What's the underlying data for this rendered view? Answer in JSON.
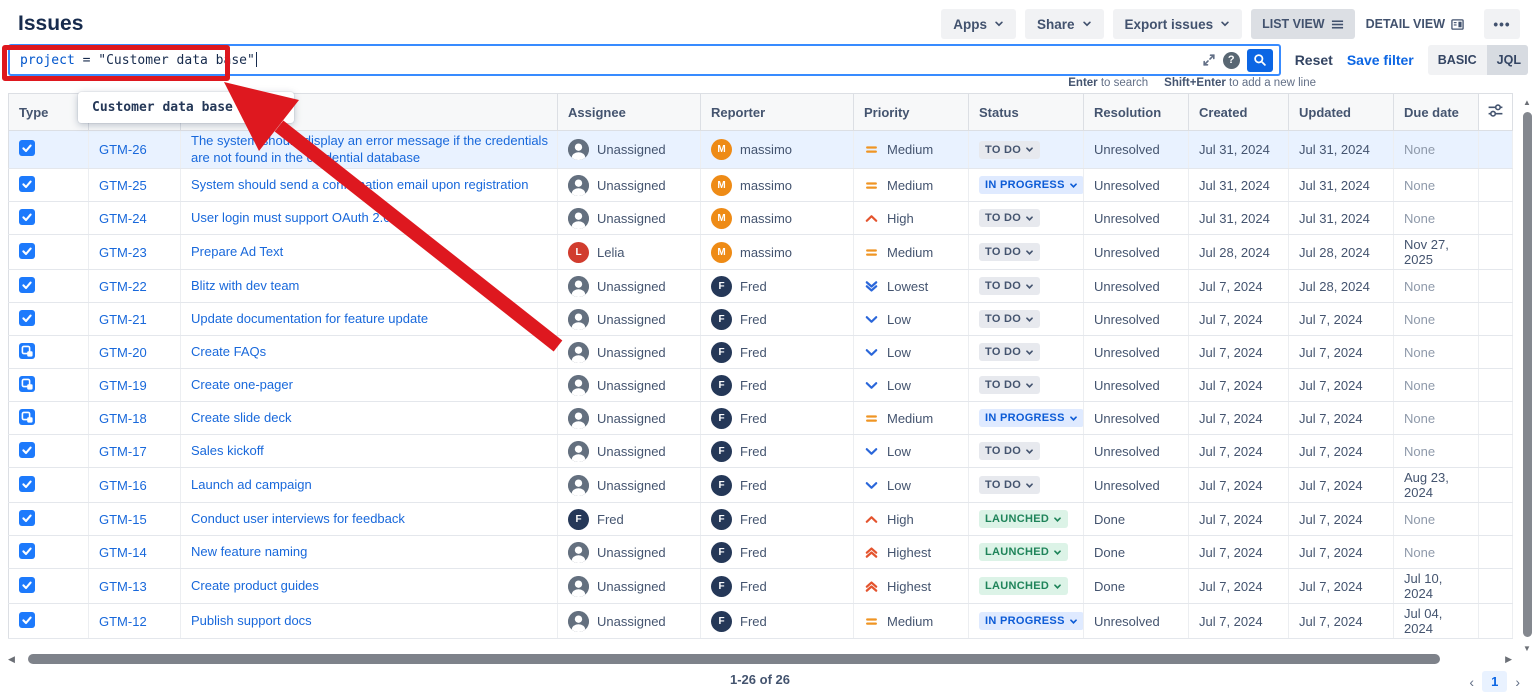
{
  "page": {
    "title": "Issues"
  },
  "toolbar": {
    "apps": "Apps",
    "share": "Share",
    "export_issues": "Export issues",
    "list_view": "LIST VIEW",
    "detail_view": "DETAIL VIEW",
    "more": "•••"
  },
  "search": {
    "query_keyword": "project",
    "query_rest": " = \"Customer data base\"",
    "reset": "Reset",
    "save_filter": "Save filter",
    "basic": "BASIC",
    "jql": "JQL",
    "hint_enter_bold": "Enter",
    "hint_enter_rest": " to search",
    "hint_shift_bold": "Shift+Enter",
    "hint_shift_rest": " to add a new line",
    "suggestion": "Customer data base (CDB)"
  },
  "icons": {
    "search": "magnifier",
    "help": "question-mark-circle",
    "expand": "diagonal-resize-arrows",
    "column_settings": "sliders",
    "list_view": "list-lines",
    "detail_view": "split-panel",
    "chevron": "chevron-down"
  },
  "colors": {
    "accent_blue": "#0c66e4",
    "search_border": "#388bff",
    "annotation_red": "#de181f",
    "selected_row": "#e9f2ff",
    "avatar_orange": "#ee8b16",
    "avatar_red": "#d13c2e",
    "avatar_navy": "#253858"
  },
  "table": {
    "columns": [
      "Type",
      "",
      "",
      "Assignee",
      "Reporter",
      "Priority",
      "Status",
      "Resolution",
      "Created",
      "Updated",
      "Due date"
    ],
    "rows": [
      {
        "selected": true,
        "type": "task",
        "key": "GTM-26",
        "summary": "The system should display an error message if the credentials are not found in the credential database",
        "assignee": {
          "name": "Unassigned",
          "avatar": "person"
        },
        "reporter": {
          "name": "massimo",
          "initial": "M",
          "color": "#ee8b16"
        },
        "priority": "Medium",
        "status": "TO DO",
        "resolution": "Unresolved",
        "created": "Jul 31, 2024",
        "updated": "Jul 31, 2024",
        "due": "None"
      },
      {
        "type": "task",
        "key": "GTM-25",
        "summary": "System should send a confirmation email upon registration",
        "assignee": {
          "name": "Unassigned",
          "avatar": "person"
        },
        "reporter": {
          "name": "massimo",
          "initial": "M",
          "color": "#ee8b16"
        },
        "priority": "Medium",
        "status": "IN PROGRESS",
        "resolution": "Unresolved",
        "created": "Jul 31, 2024",
        "updated": "Jul 31, 2024",
        "due": "None"
      },
      {
        "type": "task",
        "key": "GTM-24",
        "summary": "User login must support OAuth 2.0",
        "assignee": {
          "name": "Unassigned",
          "avatar": "person"
        },
        "reporter": {
          "name": "massimo",
          "initial": "M",
          "color": "#ee8b16"
        },
        "priority": "High",
        "status": "TO DO",
        "resolution": "Unresolved",
        "created": "Jul 31, 2024",
        "updated": "Jul 31, 2024",
        "due": "None"
      },
      {
        "type": "task",
        "key": "GTM-23",
        "summary": "Prepare Ad Text",
        "assignee": {
          "name": "Lelia",
          "initial": "L",
          "color": "#d13c2e"
        },
        "reporter": {
          "name": "massimo",
          "initial": "M",
          "color": "#ee8b16"
        },
        "priority": "Medium",
        "status": "TO DO",
        "resolution": "Unresolved",
        "created": "Jul 28, 2024",
        "updated": "Jul 28, 2024",
        "due": "Nov 27, 2025"
      },
      {
        "type": "task",
        "key": "GTM-22",
        "summary": "Blitz with dev team",
        "assignee": {
          "name": "Unassigned",
          "avatar": "person"
        },
        "reporter": {
          "name": "Fred",
          "initial": "F",
          "color": "#253858"
        },
        "priority": "Lowest",
        "status": "TO DO",
        "resolution": "Unresolved",
        "created": "Jul 7, 2024",
        "updated": "Jul 28, 2024",
        "due": "None"
      },
      {
        "type": "task",
        "key": "GTM-21",
        "summary": "Update documentation for feature update",
        "assignee": {
          "name": "Unassigned",
          "avatar": "person"
        },
        "reporter": {
          "name": "Fred",
          "initial": "F",
          "color": "#253858"
        },
        "priority": "Low",
        "status": "TO DO",
        "resolution": "Unresolved",
        "created": "Jul 7, 2024",
        "updated": "Jul 7, 2024",
        "due": "None"
      },
      {
        "type": "subtask",
        "key": "GTM-20",
        "summary": "Create FAQs",
        "assignee": {
          "name": "Unassigned",
          "avatar": "person"
        },
        "reporter": {
          "name": "Fred",
          "initial": "F",
          "color": "#253858"
        },
        "priority": "Low",
        "status": "TO DO",
        "resolution": "Unresolved",
        "created": "Jul 7, 2024",
        "updated": "Jul 7, 2024",
        "due": "None"
      },
      {
        "type": "subtask",
        "key": "GTM-19",
        "summary": "Create one-pager",
        "assignee": {
          "name": "Unassigned",
          "avatar": "person"
        },
        "reporter": {
          "name": "Fred",
          "initial": "F",
          "color": "#253858"
        },
        "priority": "Low",
        "status": "TO DO",
        "resolution": "Unresolved",
        "created": "Jul 7, 2024",
        "updated": "Jul 7, 2024",
        "due": "None"
      },
      {
        "type": "subtask",
        "key": "GTM-18",
        "summary": "Create slide deck",
        "assignee": {
          "name": "Unassigned",
          "avatar": "person"
        },
        "reporter": {
          "name": "Fred",
          "initial": "F",
          "color": "#253858"
        },
        "priority": "Medium",
        "status": "IN PROGRESS",
        "resolution": "Unresolved",
        "created": "Jul 7, 2024",
        "updated": "Jul 7, 2024",
        "due": "None"
      },
      {
        "type": "task",
        "key": "GTM-17",
        "summary": "Sales kickoff",
        "assignee": {
          "name": "Unassigned",
          "avatar": "person"
        },
        "reporter": {
          "name": "Fred",
          "initial": "F",
          "color": "#253858"
        },
        "priority": "Low",
        "status": "TO DO",
        "resolution": "Unresolved",
        "created": "Jul 7, 2024",
        "updated": "Jul 7, 2024",
        "due": "None"
      },
      {
        "type": "task",
        "key": "GTM-16",
        "summary": "Launch ad campaign",
        "assignee": {
          "name": "Unassigned",
          "avatar": "person"
        },
        "reporter": {
          "name": "Fred",
          "initial": "F",
          "color": "#253858"
        },
        "priority": "Low",
        "status": "TO DO",
        "resolution": "Unresolved",
        "created": "Jul 7, 2024",
        "updated": "Jul 7, 2024",
        "due": "Aug 23, 2024"
      },
      {
        "type": "task",
        "key": "GTM-15",
        "summary": "Conduct user interviews for feedback",
        "assignee": {
          "name": "Fred",
          "initial": "F",
          "color": "#253858"
        },
        "reporter": {
          "name": "Fred",
          "initial": "F",
          "color": "#253858"
        },
        "priority": "High",
        "status": "LAUNCHED",
        "resolution": "Done",
        "created": "Jul 7, 2024",
        "updated": "Jul 7, 2024",
        "due": "None"
      },
      {
        "type": "task",
        "key": "GTM-14",
        "summary": "New feature naming",
        "assignee": {
          "name": "Unassigned",
          "avatar": "person"
        },
        "reporter": {
          "name": "Fred",
          "initial": "F",
          "color": "#253858"
        },
        "priority": "Highest",
        "status": "LAUNCHED",
        "resolution": "Done",
        "created": "Jul 7, 2024",
        "updated": "Jul 7, 2024",
        "due": "None"
      },
      {
        "type": "task",
        "key": "GTM-13",
        "summary": "Create product guides",
        "assignee": {
          "name": "Unassigned",
          "avatar": "person"
        },
        "reporter": {
          "name": "Fred",
          "initial": "F",
          "color": "#253858"
        },
        "priority": "Highest",
        "status": "LAUNCHED",
        "resolution": "Done",
        "created": "Jul 7, 2024",
        "updated": "Jul 7, 2024",
        "due": "Jul 10, 2024"
      },
      {
        "type": "task",
        "key": "GTM-12",
        "summary": "Publish support docs",
        "assignee": {
          "name": "Unassigned",
          "avatar": "person"
        },
        "reporter": {
          "name": "Fred",
          "initial": "F",
          "color": "#253858"
        },
        "priority": "Medium",
        "status": "IN PROGRESS",
        "resolution": "Unresolved",
        "created": "Jul 7, 2024",
        "updated": "Jul 7, 2024",
        "due": "Jul 04, 2024"
      }
    ]
  },
  "pagination": {
    "range": "1-26 of 26",
    "prev": "‹",
    "page": "1",
    "next": "›"
  }
}
